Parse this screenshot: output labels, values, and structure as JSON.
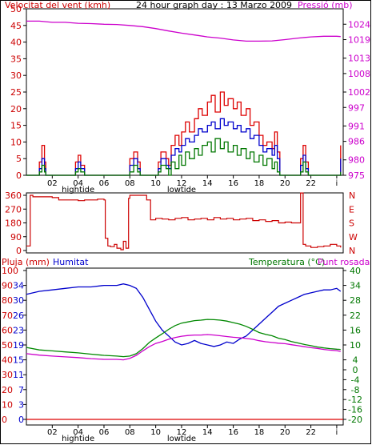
{
  "chart_data": [
    {
      "type": "line",
      "panel": "wind-pressure",
      "title": "24 hour graph day : 13 Marzo 2009",
      "left_label": "Velocitat del vent (kmh)",
      "right_label": "Pressió (mb)",
      "x_ticks": [
        "02",
        "04",
        "06",
        "08",
        "10",
        "12",
        "14",
        "16",
        "18",
        "20",
        "22",
        "i"
      ],
      "tide_labels": [
        {
          "x": 4,
          "label": "hightide"
        },
        {
          "x": 12,
          "label": "lowtide"
        }
      ],
      "ylim_left": [
        0,
        50
      ],
      "ylim_right": [
        975,
        1029
      ],
      "left_ticks": [
        0,
        5,
        10,
        15,
        20,
        25,
        30,
        35,
        40,
        45,
        50
      ],
      "right_ticks": [
        975,
        980,
        986,
        991,
        997,
        1002,
        1008,
        1013,
        1019,
        1024
      ],
      "x_range": [
        0,
        24.5
      ],
      "series": [
        {
          "role": "gust",
          "color": "#dd0000",
          "x": [
            0.0,
            0.5,
            0.8,
            1.0,
            1.2,
            1.4,
            1.5,
            2.0,
            3.0,
            3.5,
            3.8,
            4.0,
            4.2,
            4.5,
            5.0,
            6.0,
            7.0,
            7.8,
            8.0,
            8.3,
            8.6,
            8.8,
            9.0,
            9.5,
            10.0,
            10.2,
            10.4,
            10.8,
            11.0,
            11.2,
            11.5,
            11.8,
            12.0,
            12.3,
            12.6,
            13.0,
            13.3,
            13.6,
            14.0,
            14.3,
            14.6,
            15.0,
            15.3,
            15.6,
            16.0,
            16.3,
            16.6,
            17.0,
            17.3,
            17.6,
            18.0,
            18.3,
            18.6,
            19.0,
            19.2,
            19.4,
            19.6,
            20.0,
            20.5,
            21.0,
            21.2,
            21.4,
            21.6,
            21.8,
            22.0,
            22.5,
            23.0,
            23.5,
            24.0,
            24.3
          ],
          "values": [
            0,
            0,
            0,
            4,
            9,
            4,
            0,
            0,
            0,
            0,
            4,
            6,
            3,
            0,
            0,
            0,
            0,
            0,
            5,
            7,
            4,
            0,
            0,
            0,
            0,
            4,
            7,
            5,
            3,
            9,
            12,
            9,
            13,
            16,
            13,
            17,
            20,
            18,
            22,
            24,
            19,
            25,
            21,
            23,
            20,
            22,
            18,
            20,
            15,
            16,
            12,
            9,
            10,
            8,
            13,
            7,
            0,
            0,
            0,
            0,
            5,
            9,
            4,
            0,
            0,
            0,
            0,
            0,
            0,
            9
          ]
        },
        {
          "role": "average",
          "color": "#0000cc",
          "x": [
            0.0,
            0.5,
            0.8,
            1.0,
            1.2,
            1.4,
            1.5,
            2.0,
            3.0,
            3.5,
            3.8,
            4.0,
            4.2,
            4.5,
            5.0,
            6.0,
            7.0,
            7.8,
            8.0,
            8.3,
            8.6,
            8.8,
            9.0,
            9.5,
            10.0,
            10.2,
            10.4,
            10.8,
            11.0,
            11.2,
            11.5,
            11.8,
            12.0,
            12.3,
            12.6,
            13.0,
            13.3,
            13.6,
            14.0,
            14.3,
            14.6,
            15.0,
            15.3,
            15.6,
            16.0,
            16.3,
            16.6,
            17.0,
            17.3,
            17.6,
            18.0,
            18.3,
            18.6,
            19.0,
            19.2,
            19.4,
            19.6,
            20.0,
            20.5,
            21.0,
            21.2,
            21.4,
            21.6,
            21.8,
            22.0,
            22.5,
            23.0,
            23.5,
            24.0,
            24.3
          ],
          "values": [
            0,
            0,
            0,
            2,
            5,
            2,
            0,
            0,
            0,
            0,
            2,
            4,
            2,
            0,
            0,
            0,
            0,
            0,
            3,
            5,
            2,
            0,
            0,
            0,
            0,
            2,
            5,
            3,
            2,
            6,
            8,
            7,
            9,
            11,
            10,
            12,
            14,
            13,
            15,
            16,
            14,
            17,
            15,
            16,
            14,
            15,
            13,
            14,
            11,
            12,
            9,
            7,
            8,
            6,
            9,
            5,
            0,
            0,
            0,
            0,
            3,
            6,
            2,
            0,
            0,
            0,
            0,
            0,
            0,
            5
          ]
        },
        {
          "role": "direction-speed",
          "color": "#007700",
          "x": [
            0.0,
            0.5,
            0.8,
            1.0,
            1.2,
            1.4,
            1.5,
            2.0,
            3.0,
            3.5,
            3.8,
            4.0,
            4.2,
            4.5,
            5.0,
            6.0,
            7.0,
            7.8,
            8.0,
            8.3,
            8.6,
            8.8,
            9.0,
            9.5,
            10.0,
            10.2,
            10.4,
            10.8,
            11.0,
            11.2,
            11.5,
            11.8,
            12.0,
            12.3,
            12.6,
            13.0,
            13.3,
            13.6,
            14.0,
            14.3,
            14.6,
            15.0,
            15.3,
            15.6,
            16.0,
            16.3,
            16.6,
            17.0,
            17.3,
            17.6,
            18.0,
            18.3,
            18.6,
            19.0,
            19.2,
            19.4,
            19.6,
            20.0,
            20.5,
            21.0,
            21.2,
            21.4,
            21.6,
            21.8,
            22.0,
            22.5,
            23.0,
            23.5,
            24.0,
            24.3
          ],
          "values": [
            0,
            0,
            0,
            1,
            3,
            1,
            0,
            0,
            0,
            0,
            1,
            2,
            1,
            0,
            0,
            0,
            0,
            0,
            1,
            3,
            1,
            0,
            0,
            0,
            0,
            1,
            3,
            2,
            0,
            4,
            2,
            6,
            3,
            7,
            5,
            8,
            6,
            9,
            10,
            7,
            11,
            8,
            10,
            7,
            9,
            6,
            8,
            5,
            7,
            4,
            6,
            3,
            5,
            2,
            4,
            1,
            0,
            0,
            0,
            0,
            1,
            4,
            1,
            0,
            0,
            0,
            0,
            0,
            0,
            1
          ]
        },
        {
          "role": "pressure",
          "axis": "right",
          "color": "#cc00cc",
          "x": [
            0,
            1,
            2,
            3,
            4,
            5,
            6,
            7,
            8,
            9,
            10,
            11,
            12,
            13,
            14,
            15,
            16,
            17,
            18,
            19,
            20,
            21,
            22,
            23,
            24,
            24.3
          ],
          "values": [
            1025,
            1025,
            1024.6,
            1024.6,
            1024.3,
            1024.2,
            1024,
            1023.9,
            1023.6,
            1023.2,
            1022.6,
            1021.8,
            1021.1,
            1020.5,
            1019.9,
            1019.5,
            1018.9,
            1018.5,
            1018.5,
            1018.6,
            1019,
            1019.5,
            1019.9,
            1020.1,
            1020.1,
            1020
          ]
        }
      ]
    },
    {
      "type": "line",
      "panel": "wind-direction",
      "x_range": [
        0,
        24.5
      ],
      "ylim": [
        0,
        360
      ],
      "left_ticks": [
        0,
        90,
        180,
        270,
        360
      ],
      "right_ticks": [
        "N",
        "E",
        "S",
        "W",
        "N"
      ],
      "series": [
        {
          "role": "direction",
          "color": "#cc0000",
          "x": [
            0.0,
            0.3,
            0.5,
            1.0,
            1.5,
            2.0,
            2.5,
            3.0,
            3.5,
            4.0,
            4.5,
            5.0,
            5.5,
            6.0,
            6.1,
            6.3,
            6.5,
            6.8,
            7.0,
            7.3,
            7.5,
            7.7,
            7.9,
            8.0,
            8.5,
            9.0,
            9.3,
            9.6,
            10.0,
            10.5,
            11.0,
            11.5,
            12.0,
            12.5,
            13.0,
            13.5,
            14.0,
            14.5,
            15.0,
            15.5,
            16.0,
            16.5,
            17.0,
            17.5,
            18.0,
            18.5,
            19.0,
            19.5,
            20.0,
            20.5,
            21.0,
            21.2,
            21.4,
            21.6,
            22.0,
            22.5,
            23.0,
            23.5,
            24.0,
            24.3
          ],
          "values": [
            30,
            360,
            350,
            350,
            350,
            345,
            330,
            330,
            330,
            325,
            330,
            330,
            335,
            330,
            80,
            30,
            25,
            40,
            15,
            5,
            60,
            15,
            340,
            360,
            360,
            360,
            330,
            200,
            210,
            205,
            200,
            210,
            215,
            200,
            205,
            210,
            200,
            215,
            205,
            210,
            200,
            205,
            210,
            195,
            200,
            190,
            195,
            180,
            185,
            180,
            180,
            375,
            40,
            30,
            20,
            25,
            30,
            40,
            30,
            20
          ]
        }
      ]
    },
    {
      "type": "line",
      "panel": "humidity-temperature",
      "left_labels": [
        "Pluja (mm)",
        "Humitat"
      ],
      "right_labels": [
        "Temperatura (°C)",
        "Punt rosada"
      ],
      "x_ticks": [
        "02",
        "04",
        "06",
        "08",
        "10",
        "12",
        "14",
        "16",
        "18",
        "20",
        "22",
        "i"
      ],
      "tide_labels": [
        {
          "x": 4,
          "label": "hightide"
        },
        {
          "x": 12,
          "label": "lowtide"
        }
      ],
      "x_range": [
        0,
        24.5
      ],
      "ylim_left": [
        0,
        100
      ],
      "ylim_right": [
        -20,
        40
      ],
      "left_ticks_rain": [
        0,
        10,
        20,
        30,
        40,
        50,
        60,
        70,
        80,
        90,
        100
      ],
      "left_ticks_humidity": [
        0,
        3,
        7,
        11,
        15,
        19,
        23,
        26,
        30,
        34
      ],
      "right_ticks": [
        -20,
        -16,
        -12,
        -8,
        -4,
        0,
        4,
        10,
        16,
        22,
        28,
        34,
        40
      ],
      "series": [
        {
          "role": "humidity",
          "axis": "left",
          "color": "#0000cc",
          "x": [
            0,
            1,
            2,
            3,
            4,
            5,
            6,
            7,
            7.5,
            8,
            8.5,
            9,
            9.5,
            10,
            10.5,
            11,
            11.5,
            12,
            12.5,
            13,
            13.5,
            14,
            14.5,
            15,
            15.5,
            16,
            16.5,
            17,
            17.5,
            18,
            18.5,
            19,
            19.5,
            20,
            20.5,
            21,
            21.5,
            22,
            22.5,
            23,
            23.5,
            24,
            24.3
          ],
          "values": [
            84,
            86,
            87,
            88,
            89,
            89,
            90,
            90,
            91,
            90,
            88,
            82,
            74,
            66,
            60,
            56,
            52,
            50,
            51,
            53,
            51,
            50,
            49,
            50,
            52,
            51,
            54,
            56,
            60,
            64,
            68,
            72,
            76,
            78,
            80,
            82,
            84,
            85,
            86,
            87,
            87,
            88,
            86
          ]
        },
        {
          "role": "temperature",
          "axis": "right",
          "color": "#008800",
          "x": [
            0,
            1,
            2,
            3,
            4,
            5,
            6,
            7,
            7.5,
            8,
            8.5,
            9,
            9.5,
            10,
            10.5,
            11,
            11.5,
            12,
            12.5,
            13,
            13.5,
            14,
            14.5,
            15,
            15.5,
            16,
            16.5,
            17,
            17.5,
            18,
            18.5,
            19,
            19.5,
            20,
            20.5,
            21,
            21.5,
            22,
            22.5,
            23,
            23.5,
            24,
            24.3
          ],
          "values": [
            9,
            8,
            7.6,
            7.2,
            6.8,
            6.3,
            5.8,
            5.5,
            5.3,
            5.5,
            6.5,
            8.5,
            11,
            12.8,
            14.5,
            16.3,
            17.8,
            18.8,
            19.3,
            19.8,
            20,
            20.3,
            20.2,
            20,
            19.6,
            19,
            18.4,
            17.5,
            16.3,
            15,
            14.3,
            13.7,
            12.7,
            12.2,
            11.4,
            10.8,
            10.2,
            9.7,
            9.2,
            8.8,
            8.5,
            8.3,
            8.2
          ]
        },
        {
          "role": "dew-point",
          "axis": "right",
          "color": "#cc00cc",
          "x": [
            0,
            1,
            2,
            3,
            4,
            5,
            6,
            7,
            7.5,
            8,
            8.5,
            9,
            9.5,
            10,
            10.5,
            11,
            11.5,
            12,
            12.5,
            13,
            13.5,
            14,
            14.5,
            15,
            15.5,
            16,
            16.5,
            17,
            17.5,
            18,
            18.5,
            19,
            19.5,
            20,
            20.5,
            21,
            21.5,
            22,
            22.5,
            23,
            23.5,
            24,
            24.3
          ],
          "values": [
            6.5,
            5.9,
            5.5,
            5.2,
            4.9,
            4.5,
            4.2,
            4.2,
            4,
            4.6,
            5.8,
            7.6,
            9.3,
            10.6,
            11.4,
            12.3,
            13,
            13.5,
            13.8,
            14,
            14,
            14.2,
            14,
            13.7,
            13.4,
            13.1,
            12.9,
            12.6,
            12.3,
            11.7,
            11.3,
            11,
            10.7,
            10.5,
            10.1,
            9.7,
            9.3,
            8.9,
            8.6,
            8.2,
            7.9,
            7.7,
            7.4
          ]
        },
        {
          "role": "rain",
          "axis": "left",
          "color": "#dd0000",
          "x": [
            0,
            24.5
          ],
          "values": [
            0,
            0
          ]
        }
      ]
    }
  ]
}
